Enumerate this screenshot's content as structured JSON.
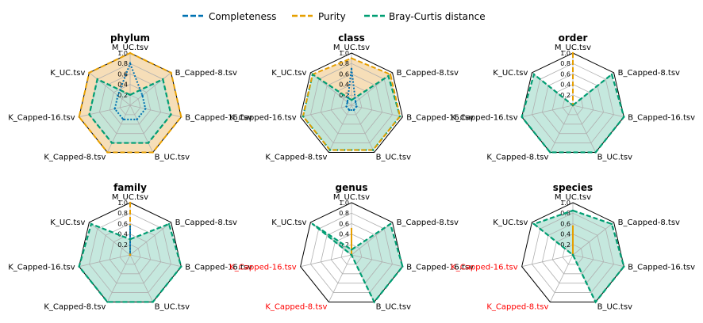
{
  "chart_data": {
    "type": "radar",
    "axes": [
      "M_UC.tsv",
      "B_Capped-8.tsv",
      "B_Capped-16.tsv",
      "B_UC.tsv",
      "K_Capped-8.tsv",
      "K_Capped-16.tsv",
      "K_UC.tsv"
    ],
    "rlim": [
      0,
      1.0
    ],
    "rticks": [
      "0.2",
      "0.4",
      "0.6",
      "0.8",
      "1.0"
    ],
    "legend": {
      "placement": "top-center",
      "entries": [
        {
          "name": "Completeness",
          "color": "#0072B2",
          "style": "dashed"
        },
        {
          "name": "Purity",
          "color": "#E69F00",
          "style": "dashed"
        },
        {
          "name": "Bray-Curtis distance",
          "color": "#009E73",
          "style": "dashed"
        }
      ]
    },
    "highlight_color": "#ff0000",
    "panels": [
      {
        "title": "phylum",
        "highlighted_labels": [],
        "completeness": [
          0.8,
          0.3,
          0.3,
          0.3,
          0.3,
          0.3,
          0.3
        ],
        "purity": [
          1.0,
          1.0,
          1.0,
          1.0,
          1.0,
          1.0,
          1.0
        ],
        "bray_curtis": [
          0.2,
          0.8,
          0.8,
          0.8,
          0.8,
          0.8,
          0.8
        ]
      },
      {
        "title": "class",
        "highlighted_labels": [],
        "completeness": [
          0.7,
          0.1,
          0.1,
          0.1,
          0.1,
          0.1,
          0.1
        ],
        "purity": [
          0.9,
          0.95,
          0.95,
          0.95,
          0.95,
          0.95,
          0.95
        ],
        "bray_curtis": [
          0.1,
          0.9,
          0.95,
          0.95,
          0.95,
          0.95,
          0.95
        ]
      },
      {
        "title": "order",
        "highlighted_labels": [],
        "completeness": [
          0.0,
          0.0,
          0.0,
          0.0,
          0.0,
          0.0,
          0.0
        ],
        "purity": [
          1.0,
          0.0,
          0.0,
          0.0,
          0.0,
          0.0,
          0.0
        ],
        "bray_curtis": [
          0.0,
          0.95,
          1.0,
          1.0,
          1.0,
          1.0,
          0.95
        ]
      },
      {
        "title": "family",
        "highlighted_labels": [],
        "completeness": [
          0.55,
          0.0,
          0.0,
          0.0,
          0.0,
          0.0,
          0.0
        ],
        "purity": [
          1.0,
          0.0,
          0.0,
          0.0,
          0.0,
          0.0,
          0.0
        ],
        "bray_curtis": [
          0.3,
          0.95,
          1.0,
          1.0,
          1.0,
          1.0,
          0.95
        ]
      },
      {
        "title": "genus",
        "highlighted_labels": [
          "K_Capped-16.tsv",
          "K_Capped-8.tsv"
        ],
        "completeness": [
          0.0,
          0.0,
          0.0,
          0.0,
          0.0,
          0.0,
          0.0
        ],
        "purity": [
          0.5,
          0.0,
          0.0,
          0.0,
          0.0,
          0.0,
          0.0
        ],
        "bray_curtis": [
          0.1,
          0.95,
          1.0,
          1.0,
          0.0,
          0.0,
          0.95
        ]
      },
      {
        "title": "species",
        "highlighted_labels": [
          "K_Capped-16.tsv",
          "K_Capped-8.tsv"
        ],
        "completeness": [
          0.0,
          0.0,
          0.0,
          0.0,
          0.0,
          0.0,
          0.0
        ],
        "purity": [
          0.55,
          0.0,
          0.0,
          0.0,
          0.0,
          0.0,
          0.0
        ],
        "bray_curtis": [
          0.85,
          0.95,
          1.0,
          1.0,
          0.0,
          0.0,
          0.95
        ]
      }
    ]
  }
}
